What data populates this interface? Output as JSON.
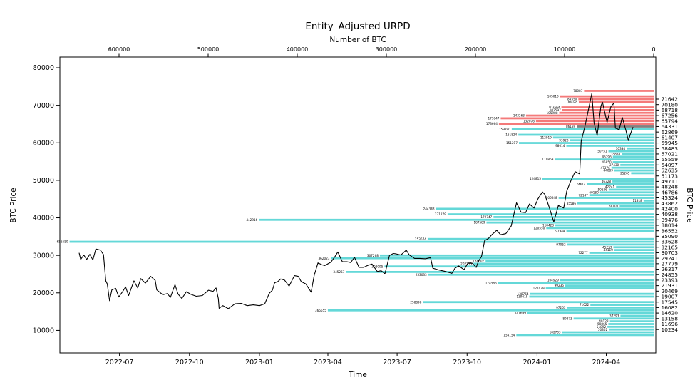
{
  "title": "Entity_Adjusted URPD",
  "chart_data": {
    "type": "barh+line",
    "title": "Entity_Adjusted URPD",
    "top_axis": {
      "label": "Number of BTC",
      "reversed": true,
      "ticks": [
        600000,
        500000,
        400000,
        300000,
        200000,
        100000,
        0
      ]
    },
    "bottom_axis": {
      "label": "Time",
      "ticks": [
        "2022-07",
        "2022-10",
        "2023-01",
        "2023-04",
        "2023-07",
        "2023-10",
        "2024-01",
        "2024-04"
      ]
    },
    "left_axis": {
      "label": "BTC Price",
      "ticks": [
        80000,
        70000,
        60000,
        50000,
        40000,
        30000,
        20000,
        10000
      ]
    },
    "right_axis": {
      "label": "BTC Price",
      "tick_prices": [
        71642,
        70180,
        68718,
        67256,
        65794,
        64331,
        62869,
        61407,
        59945,
        58483,
        57021,
        55559,
        54097,
        52635,
        51173,
        49711,
        48248,
        46786,
        45324,
        43862,
        42400,
        40938,
        39476,
        38014,
        36552,
        35090,
        33628,
        32165,
        30703,
        29241,
        27779,
        26317,
        24855,
        23393,
        21931,
        20469,
        19007,
        17545,
        16082,
        14620,
        13158,
        11696,
        10234
      ]
    },
    "colors": {
      "red": "#f47a7a",
      "cyan": "#64d8d8",
      "gray": "#808080",
      "line": "#000000"
    },
    "bars_format": [
      "price",
      "btc",
      "color"
    ],
    "bars": [
      [
        73835,
        78087,
        "red"
      ],
      [
        72373,
        105010,
        "red"
      ],
      [
        71642,
        84550,
        "red"
      ],
      [
        70911,
        84028,
        "red"
      ],
      [
        69449,
        103564,
        "red"
      ],
      [
        68718,
        102597,
        "red"
      ],
      [
        67987,
        105988,
        "red"
      ],
      [
        67256,
        143263,
        "red"
      ],
      [
        66525,
        171647,
        "red"
      ],
      [
        65794,
        132076,
        "red"
      ],
      [
        65063,
        173664,
        "red"
      ],
      [
        64331,
        86139,
        "gray"
      ],
      [
        63600,
        159290,
        "cyan"
      ],
      [
        62138,
        151824,
        "cyan"
      ],
      [
        61407,
        112919,
        "cyan"
      ],
      [
        60676,
        93920,
        "cyan"
      ],
      [
        59945,
        151217,
        "cyan"
      ],
      [
        59214,
        98014,
        "cyan"
      ],
      [
        58483,
        30334,
        "cyan"
      ],
      [
        57752,
        50751,
        "cyan"
      ],
      [
        57021,
        35858,
        "cyan"
      ],
      [
        56290,
        45796,
        "cyan"
      ],
      [
        55559,
        110869,
        "cyan"
      ],
      [
        54828,
        45850,
        "cyan"
      ],
      [
        54097,
        37430,
        "cyan"
      ],
      [
        53366,
        47376,
        "cyan"
      ],
      [
        52635,
        44089,
        "cyan"
      ],
      [
        51904,
        25265,
        "cyan"
      ],
      [
        50442,
        124815,
        "cyan"
      ],
      [
        49711,
        46328,
        "cyan"
      ],
      [
        48980,
        74614,
        "cyan"
      ],
      [
        48248,
        42241,
        "cyan"
      ],
      [
        47517,
        50526,
        "cyan"
      ],
      [
        46786,
        60180,
        "cyan"
      ],
      [
        46055,
        72147,
        "cyan"
      ],
      [
        45324,
        106648,
        "cyan"
      ],
      [
        44593,
        11318,
        "cyan"
      ],
      [
        43862,
        85586,
        "cyan"
      ],
      [
        43131,
        38105,
        "cyan"
      ],
      [
        42400,
        244348,
        "cyan"
      ],
      [
        40938,
        231279,
        "cyan"
      ],
      [
        40207,
        179747,
        "cyan"
      ],
      [
        39476,
        442916,
        "cyan"
      ],
      [
        38745,
        187589,
        "cyan"
      ],
      [
        38014,
        110428,
        "cyan"
      ],
      [
        37283,
        120550,
        "cyan"
      ],
      [
        36552,
        97944,
        "cyan"
      ],
      [
        34359,
        253674,
        "cyan"
      ],
      [
        33628,
        655550,
        "cyan"
      ],
      [
        32897,
        97052,
        "cyan"
      ],
      [
        32165,
        45233,
        "cyan"
      ],
      [
        31434,
        44110,
        "cyan"
      ],
      [
        30703,
        72277,
        "cyan"
      ],
      [
        29972,
        307268,
        "cyan"
      ],
      [
        29241,
        362023,
        "cyan"
      ],
      [
        28510,
        188607,
        "cyan"
      ],
      [
        27779,
        202255,
        "cyan"
      ],
      [
        27048,
        302095,
        "cyan"
      ],
      [
        25586,
        345257,
        "cyan"
      ],
      [
        24855,
        253033,
        "cyan"
      ],
      [
        23393,
        104929,
        "cyan"
      ],
      [
        22662,
        174585,
        "cyan"
      ],
      [
        21931,
        99236,
        "cyan"
      ],
      [
        21200,
        121079,
        "cyan"
      ],
      [
        19738,
        138764,
        "cyan"
      ],
      [
        19007,
        139618,
        "cyan"
      ],
      [
        17545,
        258898,
        "cyan"
      ],
      [
        16814,
        71022,
        "cyan"
      ],
      [
        16082,
        97263,
        "cyan"
      ],
      [
        15351,
        365655,
        "cyan"
      ],
      [
        14620,
        141699,
        "cyan"
      ],
      [
        13889,
        37293,
        "cyan"
      ],
      [
        13158,
        89873,
        "cyan"
      ],
      [
        12427,
        49128,
        "cyan"
      ],
      [
        11696,
        50865,
        "cyan"
      ],
      [
        10965,
        51892,
        "cyan"
      ],
      [
        10234,
        50302,
        "cyan"
      ],
      [
        9503,
        102703,
        "cyan"
      ],
      [
        8772,
        154154,
        "cyan"
      ]
    ],
    "price_line": [
      [
        "2022-05-09",
        30600
      ],
      [
        "2022-05-11",
        28900
      ],
      [
        "2022-05-15",
        30100
      ],
      [
        "2022-05-19",
        28900
      ],
      [
        "2022-05-23",
        30300
      ],
      [
        "2022-05-27",
        28800
      ],
      [
        "2022-05-31",
        31700
      ],
      [
        "2022-06-06",
        31400
      ],
      [
        "2022-06-10",
        30200
      ],
      [
        "2022-06-13",
        23200
      ],
      [
        "2022-06-15",
        22400
      ],
      [
        "2022-06-18",
        17900
      ],
      [
        "2022-06-21",
        20800
      ],
      [
        "2022-06-26",
        21200
      ],
      [
        "2022-06-30",
        18900
      ],
      [
        "2022-07-05",
        20300
      ],
      [
        "2022-07-09",
        21600
      ],
      [
        "2022-07-13",
        19300
      ],
      [
        "2022-07-20",
        23200
      ],
      [
        "2022-07-25",
        21300
      ],
      [
        "2022-07-29",
        23800
      ],
      [
        "2022-08-04",
        22600
      ],
      [
        "2022-08-11",
        24400
      ],
      [
        "2022-08-17",
        23300
      ],
      [
        "2022-08-19",
        20800
      ],
      [
        "2022-08-27",
        19500
      ],
      [
        "2022-09-02",
        19800
      ],
      [
        "2022-09-06",
        18800
      ],
      [
        "2022-09-12",
        22200
      ],
      [
        "2022-09-16",
        19700
      ],
      [
        "2022-09-21",
        18500
      ],
      [
        "2022-09-27",
        20300
      ],
      [
        "2022-10-03",
        19600
      ],
      [
        "2022-10-10",
        19100
      ],
      [
        "2022-10-18",
        19300
      ],
      [
        "2022-10-26",
        20700
      ],
      [
        "2022-11-01",
        20400
      ],
      [
        "2022-11-05",
        21300
      ],
      [
        "2022-11-08",
        18500
      ],
      [
        "2022-11-09",
        15900
      ],
      [
        "2022-11-14",
        16600
      ],
      [
        "2022-11-21",
        15800
      ],
      [
        "2022-11-30",
        17100
      ],
      [
        "2022-12-08",
        17200
      ],
      [
        "2022-12-16",
        16600
      ],
      [
        "2022-12-24",
        16800
      ],
      [
        "2023-01-01",
        16600
      ],
      [
        "2023-01-08",
        17100
      ],
      [
        "2023-01-14",
        19900
      ],
      [
        "2023-01-18",
        20700
      ],
      [
        "2023-01-21",
        22700
      ],
      [
        "2023-01-25",
        23000
      ],
      [
        "2023-01-29",
        23700
      ],
      [
        "2023-02-03",
        23400
      ],
      [
        "2023-02-09",
        21800
      ],
      [
        "2023-02-16",
        24600
      ],
      [
        "2023-02-21",
        24400
      ],
      [
        "2023-02-25",
        23000
      ],
      [
        "2023-03-03",
        22400
      ],
      [
        "2023-03-10",
        20200
      ],
      [
        "2023-03-14",
        24700
      ],
      [
        "2023-03-19",
        28000
      ],
      [
        "2023-03-24",
        27500
      ],
      [
        "2023-03-28",
        27300
      ],
      [
        "2023-04-05",
        28200
      ],
      [
        "2023-04-10",
        29600
      ],
      [
        "2023-04-14",
        30900
      ],
      [
        "2023-04-20",
        28300
      ],
      [
        "2023-04-26",
        28300
      ],
      [
        "2023-05-01",
        28100
      ],
      [
        "2023-05-06",
        29500
      ],
      [
        "2023-05-12",
        26800
      ],
      [
        "2023-05-18",
        26800
      ],
      [
        "2023-05-23",
        27300
      ],
      [
        "2023-05-29",
        27700
      ],
      [
        "2023-06-05",
        25700
      ],
      [
        "2023-06-10",
        25900
      ],
      [
        "2023-06-15",
        25100
      ],
      [
        "2023-06-21",
        30000
      ],
      [
        "2023-06-26",
        30500
      ],
      [
        "2023-06-30",
        30400
      ],
      [
        "2023-07-06",
        30100
      ],
      [
        "2023-07-13",
        31400
      ],
      [
        "2023-07-17",
        30100
      ],
      [
        "2023-07-24",
        29200
      ],
      [
        "2023-07-31",
        29200
      ],
      [
        "2023-08-07",
        29100
      ],
      [
        "2023-08-14",
        29400
      ],
      [
        "2023-08-17",
        26600
      ],
      [
        "2023-08-25",
        26100
      ],
      [
        "2023-09-01",
        25800
      ],
      [
        "2023-09-11",
        25200
      ],
      [
        "2023-09-15",
        26600
      ],
      [
        "2023-09-20",
        27200
      ],
      [
        "2023-09-27",
        26200
      ],
      [
        "2023-10-02",
        27900
      ],
      [
        "2023-10-08",
        27900
      ],
      [
        "2023-10-13",
        26800
      ],
      [
        "2023-10-16",
        28500
      ],
      [
        "2023-10-20",
        29700
      ],
      [
        "2023-10-24",
        33900
      ],
      [
        "2023-10-29",
        34500
      ],
      [
        "2023-11-02",
        35400
      ],
      [
        "2023-11-09",
        36700
      ],
      [
        "2023-11-14",
        35500
      ],
      [
        "2023-11-21",
        35800
      ],
      [
        "2023-11-28",
        37800
      ],
      [
        "2023-12-05",
        44000
      ],
      [
        "2023-12-11",
        41500
      ],
      [
        "2023-12-17",
        41400
      ],
      [
        "2023-12-22",
        43700
      ],
      [
        "2023-12-28",
        42600
      ],
      [
        "2024-01-02",
        45000
      ],
      [
        "2024-01-08",
        46900
      ],
      [
        "2024-01-11",
        46300
      ],
      [
        "2024-01-17",
        42800
      ],
      [
        "2024-01-23",
        38900
      ],
      [
        "2024-01-29",
        43300
      ],
      [
        "2024-02-05",
        42600
      ],
      [
        "2024-02-09",
        47100
      ],
      [
        "2024-02-14",
        49700
      ],
      [
        "2024-02-20",
        52300
      ],
      [
        "2024-02-26",
        51700
      ],
      [
        "2024-02-28",
        60400
      ],
      [
        "2024-03-04",
        64400
      ],
      [
        "2024-03-08",
        68300
      ],
      [
        "2024-03-13",
        73100
      ],
      [
        "2024-03-16",
        65300
      ],
      [
        "2024-03-20",
        61900
      ],
      [
        "2024-03-25",
        69900
      ],
      [
        "2024-03-27",
        70800
      ],
      [
        "2024-04-02",
        65400
      ],
      [
        "2024-04-07",
        69600
      ],
      [
        "2024-04-11",
        70600
      ],
      [
        "2024-04-13",
        63900
      ],
      [
        "2024-04-18",
        63500
      ],
      [
        "2024-04-22",
        66800
      ],
      [
        "2024-04-27",
        63100
      ],
      [
        "2024-04-30",
        60600
      ],
      [
        "2024-05-03",
        62500
      ],
      [
        "2024-05-06",
        64100
      ]
    ]
  }
}
